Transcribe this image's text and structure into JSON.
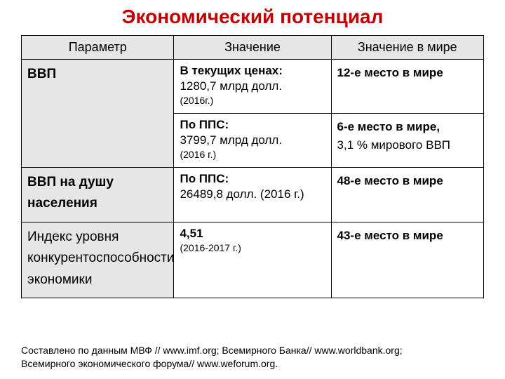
{
  "title": {
    "text": "Экономический потенциал",
    "color": "#c00000",
    "fontsize": 28
  },
  "table": {
    "header_bg": "#e6e6e6",
    "param_bg": "#e6e6e6",
    "border_color": "#000000",
    "columns": [
      "Параметр",
      "Значение",
      "Значение в мире"
    ],
    "col_widths_pct": [
      33,
      34,
      33
    ],
    "rows": [
      {
        "param": "ВВП",
        "param_bold": true,
        "param_rowspan": 2,
        "value_label": "В текущих ценах:",
        "value_main": "1280,7 млрд долл.",
        "value_note": "(2016г.)",
        "world_line1": "12-е место в мире",
        "world_line2": ""
      },
      {
        "value_label": "По ППС:",
        "value_main": "3799,7 млрд долл.",
        "value_note": "(2016 г.)",
        "world_line1": "6-е место в мире,",
        "world_line2": "3,1 % мирового ВВП"
      },
      {
        "param": "ВВП на душу населения",
        "param_bold": true,
        "value_label": "По ППС:",
        "value_main": "26489,8 долл. (2016 г.)",
        "value_note": "",
        "world_line1": "48-е место в мире",
        "world_line2": ""
      },
      {
        "param": "Индекс уровня конкурентоспособности экономики",
        "param_bold": false,
        "value_label": "4,51",
        "value_main": "",
        "value_note": "(2016-2017 г.)",
        "world_line1": "43-е место в мире",
        "world_line2": ""
      }
    ]
  },
  "footer": {
    "line1": "Составлено по данным МВФ // www.imf.org; Всемирного Банка// www.worldbank.org;",
    "line2": "Всемирного экономического форума// www.weforum.org."
  }
}
